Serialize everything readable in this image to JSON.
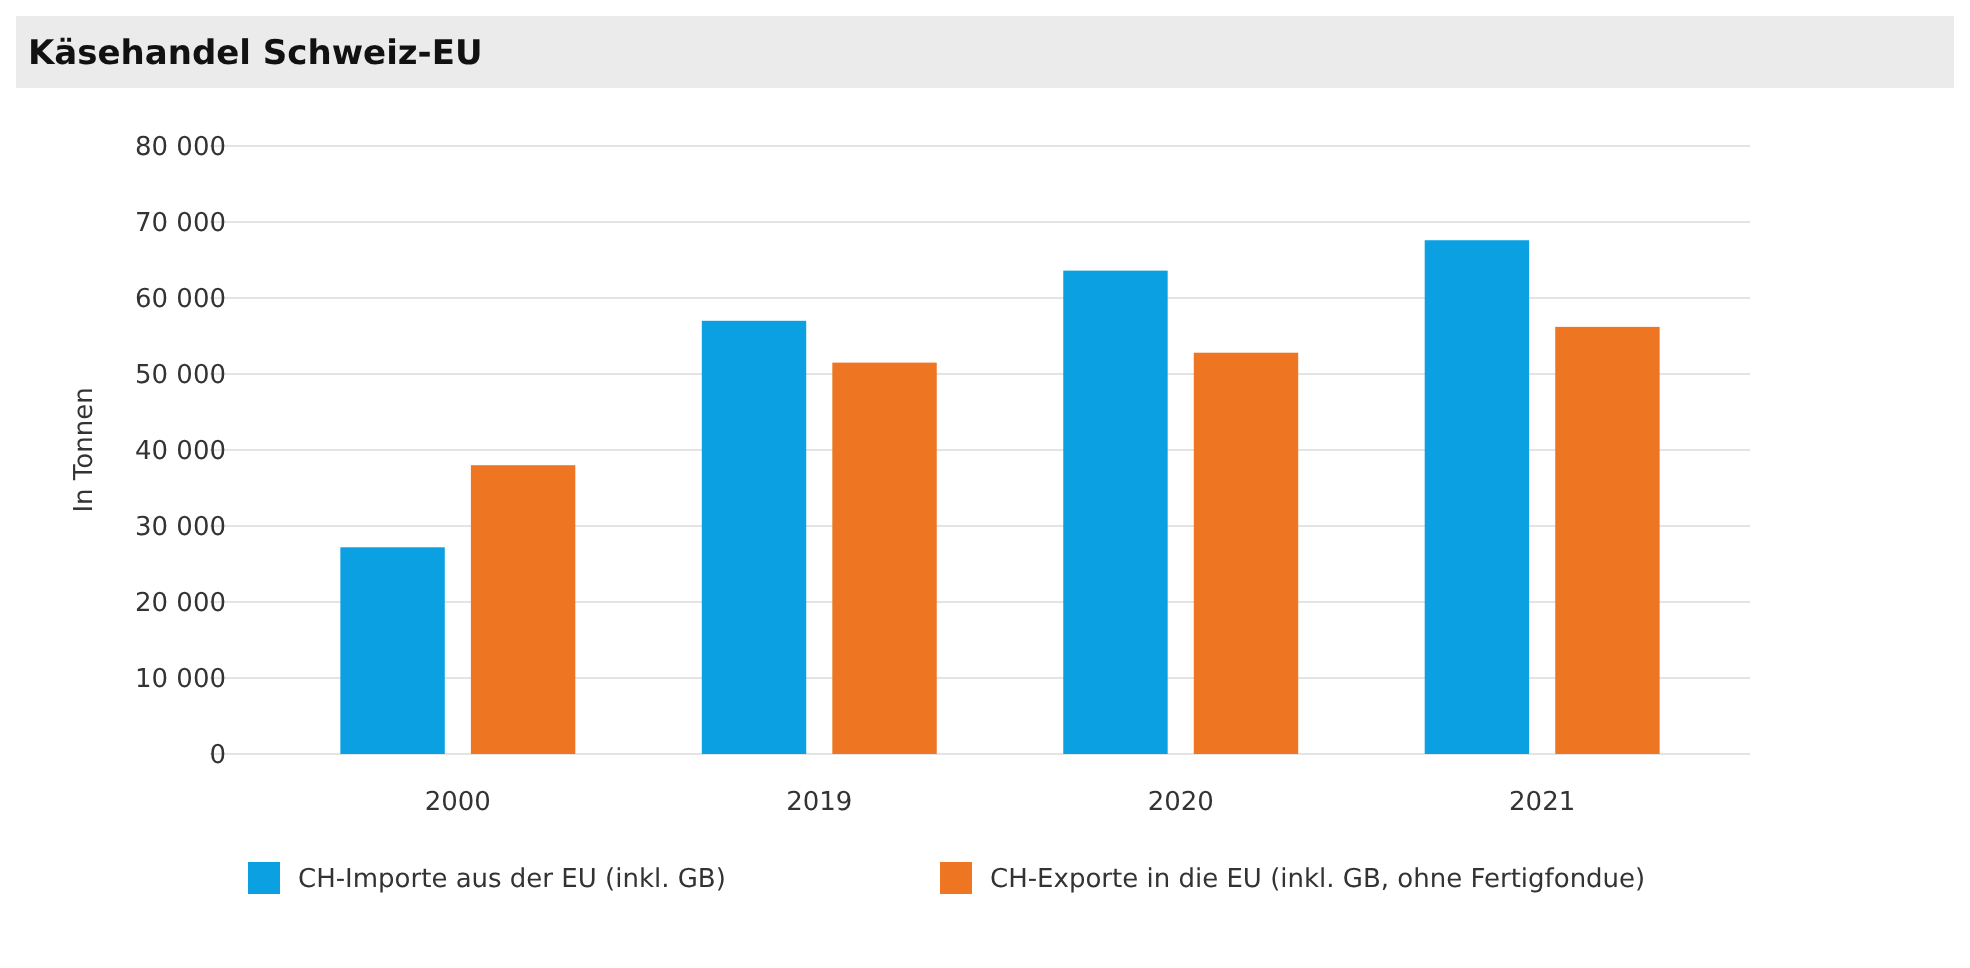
{
  "chart_data": {
    "type": "bar",
    "title": "Käsehandel Schweiz-EU",
    "ylabel": "In Tonnen",
    "categories": [
      "2000",
      "2019",
      "2020",
      "2021"
    ],
    "series": [
      {
        "name": "CH-Importe aus der EU (inkl. GB)",
        "color": "#0aa0e2",
        "values": [
          27200,
          57000,
          63600,
          67600
        ]
      },
      {
        "name": "CH-Exporte in die EU (inkl. GB, ohne Fertigfondue)",
        "color": "#ee7623",
        "values": [
          38000,
          51500,
          52800,
          56200
        ]
      }
    ],
    "ylim": [
      0,
      80000
    ],
    "yticks": [
      {
        "value": 0,
        "label": "0"
      },
      {
        "value": 10000,
        "label": "10 000"
      },
      {
        "value": 20000,
        "label": "20 000"
      },
      {
        "value": 30000,
        "label": "30 000"
      },
      {
        "value": 40000,
        "label": "40 000"
      },
      {
        "value": 50000,
        "label": "50 000"
      },
      {
        "value": 60000,
        "label": "60 000"
      },
      {
        "value": 70000,
        "label": "70 000"
      },
      {
        "value": 80000,
        "label": "80 000"
      }
    ],
    "grid": "y",
    "legend": "bottom"
  }
}
